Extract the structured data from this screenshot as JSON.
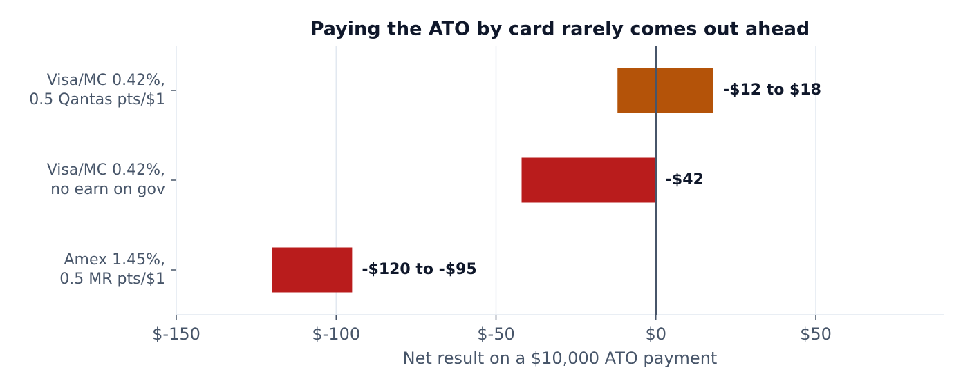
{
  "chart_data": {
    "type": "range-bar",
    "title": "Paying the ATO by card rarely comes out ahead",
    "xlabel": "Net result on a $10,000 ATO payment",
    "categories": [
      [
        "Visa/MC 0.42%,",
        "0.5 Qantas pts/$1"
      ],
      [
        "Visa/MC 0.42%,",
        "no earn on gov"
      ],
      [
        "Amex 1.45%,",
        "0.5 MR pts/$1"
      ]
    ],
    "low": [
      -12,
      -42,
      -120
    ],
    "high": [
      18,
      0,
      -95
    ],
    "value_labels": [
      "-$12 to $18",
      "-$42",
      "-$120 to -$95"
    ],
    "colors": [
      "#b45309",
      "#b91c1c",
      "#b91c1c"
    ],
    "xlim": [
      -150,
      90
    ],
    "xticks": [
      {
        "value": -150,
        "label": "$-150"
      },
      {
        "value": -100,
        "label": "$-100"
      },
      {
        "value": -50,
        "label": "$-50"
      },
      {
        "value": 0,
        "label": "$0"
      },
      {
        "value": 50,
        "label": "$50"
      }
    ],
    "grid": true
  }
}
